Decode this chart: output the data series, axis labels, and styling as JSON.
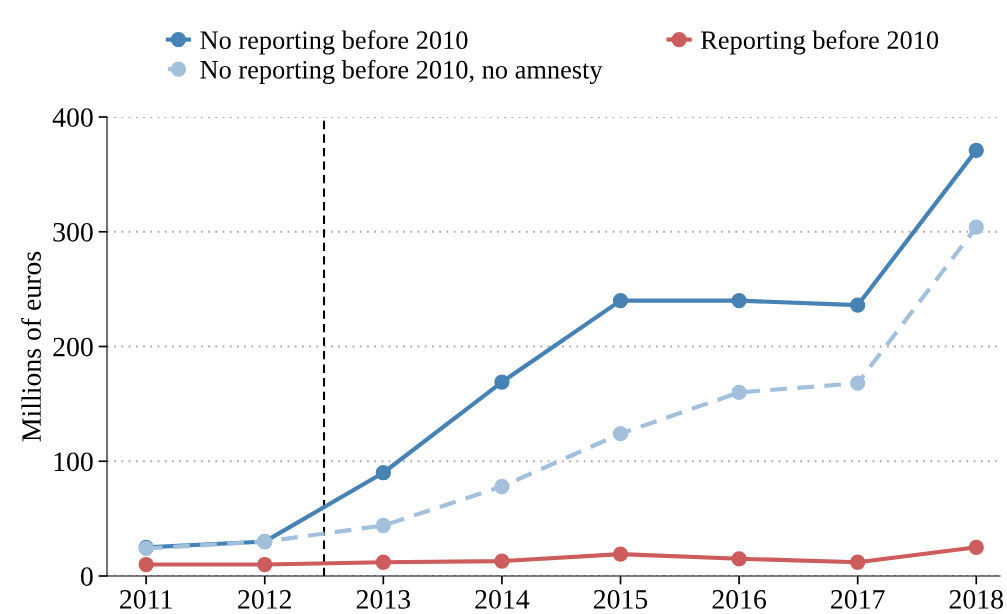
{
  "chart_data": {
    "type": "line",
    "ylabel": "Millions of euros",
    "x": [
      2011,
      2012,
      2013,
      2014,
      2015,
      2016,
      2017,
      2018
    ],
    "series": [
      {
        "name": "No reporting before 2010",
        "color": "#4682b4",
        "values": [
          25,
          30,
          90,
          169,
          240,
          240,
          236,
          371
        ],
        "line_style": "solid"
      },
      {
        "name": "No reporting before 2010, no amnesty",
        "color": "#a2c0dc",
        "values": [
          24,
          30,
          44,
          78,
          124,
          160,
          168,
          304
        ],
        "line_style": "dashed"
      },
      {
        "name": "Reporting before 2010",
        "color": "#cd5c5c",
        "values": [
          10,
          10,
          12,
          13,
          19,
          15,
          12,
          25
        ],
        "line_style": "solid"
      }
    ],
    "xlim": [
      2010.67,
      2018.2
    ],
    "xticks": [
      2011,
      2012,
      2013,
      2014,
      2015,
      2016,
      2017,
      2018
    ],
    "ylim": [
      0,
      400
    ],
    "yticks": [
      0,
      100,
      200,
      300,
      400
    ],
    "ref_lines": [
      {
        "axis": "x",
        "value": 2012.5,
        "color": "#000000",
        "line_style": "dashed"
      }
    ],
    "grid": "y",
    "legend": "top",
    "marker": "circle"
  }
}
